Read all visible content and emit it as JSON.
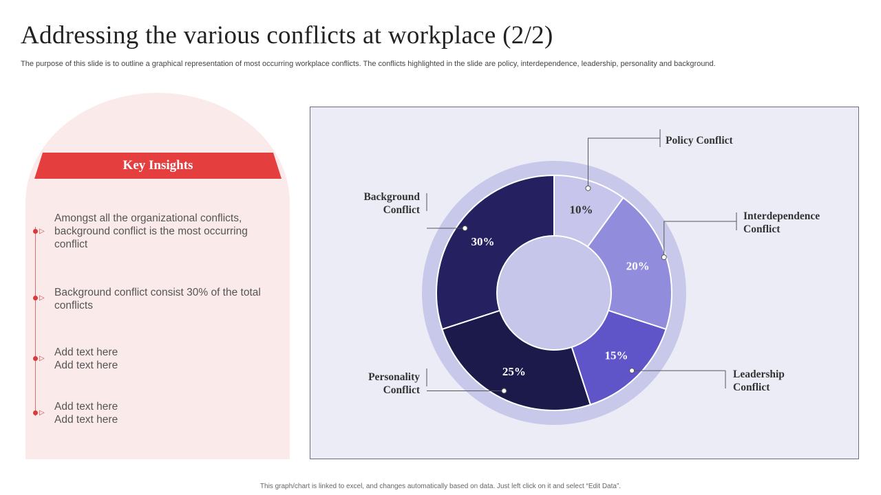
{
  "title": "Addressing the various conflicts at workplace (2/2)",
  "subtitle": "The purpose of this slide is to outline a graphical representation of most occurring workplace conflicts. The conflicts highlighted in the slide are policy, interdependence, leadership, personality and background.",
  "insights": {
    "heading": "Key Insights",
    "items": [
      {
        "text": "Amongst all the organizational conflicts, background conflict is the most occurring conflict"
      },
      {
        "text": "Background conflict consist 30% of the total conflicts"
      },
      {
        "text": "Add text here Add text here"
      },
      {
        "text": "Add text here Add text here"
      }
    ]
  },
  "footer": "This graph/chart is linked to excel, and changes automatically based on data. Just left click on it and select “Edit Data”.",
  "colors": {
    "accent_red": "#e53e3e",
    "panel_bg": "#ececf7",
    "ring": "#c8c8ea",
    "center": "#c6c5ea"
  },
  "chart_data": {
    "type": "pie",
    "variant": "donut",
    "categories": [
      "Policy Conflict",
      "Interdependence Conflict",
      "Leadership Conflict",
      "Personality Conflict",
      "Background Conflict"
    ],
    "values": [
      10,
      20,
      15,
      25,
      30
    ],
    "data_labels": [
      "10%",
      "20%",
      "15%",
      "25%",
      "30%"
    ],
    "label_lines": [
      [
        "Policy Conflict"
      ],
      [
        "Interdependence",
        "Conflict"
      ],
      [
        "Leadership",
        "Conflict"
      ],
      [
        "Personality",
        "Conflict"
      ],
      [
        "Background",
        "Conflict"
      ]
    ],
    "colors": [
      "#c8c5ec",
      "#918ddc",
      "#5f54c8",
      "#1c1a4a",
      "#25205f"
    ],
    "label_colors": [
      "#333333",
      "#ffffff",
      "#ffffff",
      "#ffffff",
      "#ffffff"
    ],
    "unit": "%"
  }
}
